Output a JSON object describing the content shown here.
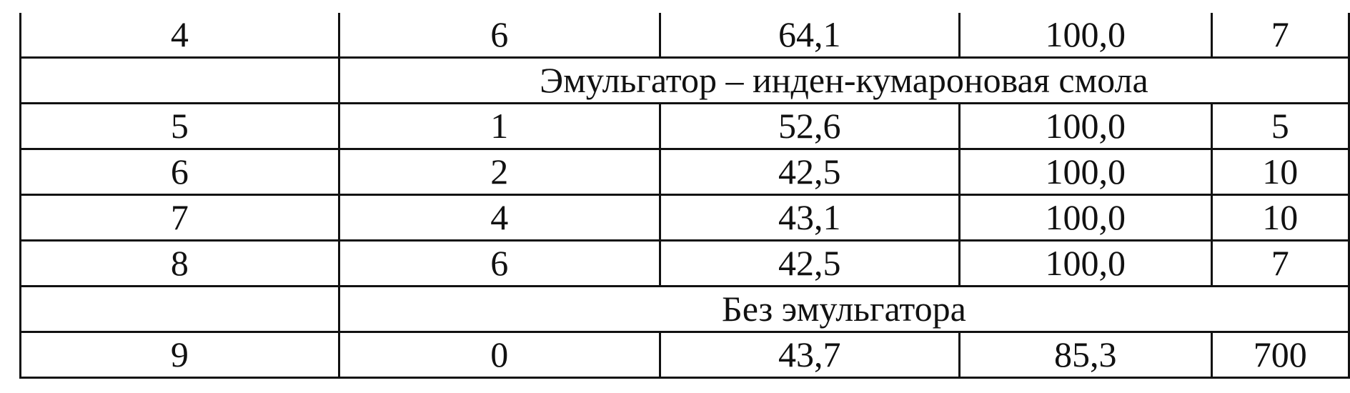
{
  "table": {
    "rows": [
      {
        "type": "data",
        "cells": [
          "4",
          "6",
          "64,1",
          "100,0",
          "7"
        ]
      },
      {
        "type": "section",
        "label": "Эмульгатор – инден-кумароновая смола"
      },
      {
        "type": "data",
        "cells": [
          "5",
          "1",
          "52,6",
          "100,0",
          "5"
        ]
      },
      {
        "type": "data",
        "cells": [
          "6",
          "2",
          "42,5",
          "100,0",
          "10"
        ]
      },
      {
        "type": "data",
        "cells": [
          "7",
          "4",
          "43,1",
          "100,0",
          "10"
        ]
      },
      {
        "type": "data",
        "cells": [
          "8",
          "6",
          "42,5",
          "100,0",
          "7"
        ]
      },
      {
        "type": "section",
        "label": "Без эмульгатора"
      },
      {
        "type": "data",
        "cells": [
          "9",
          "0",
          "43,7",
          "85,3",
          "700"
        ]
      }
    ]
  }
}
